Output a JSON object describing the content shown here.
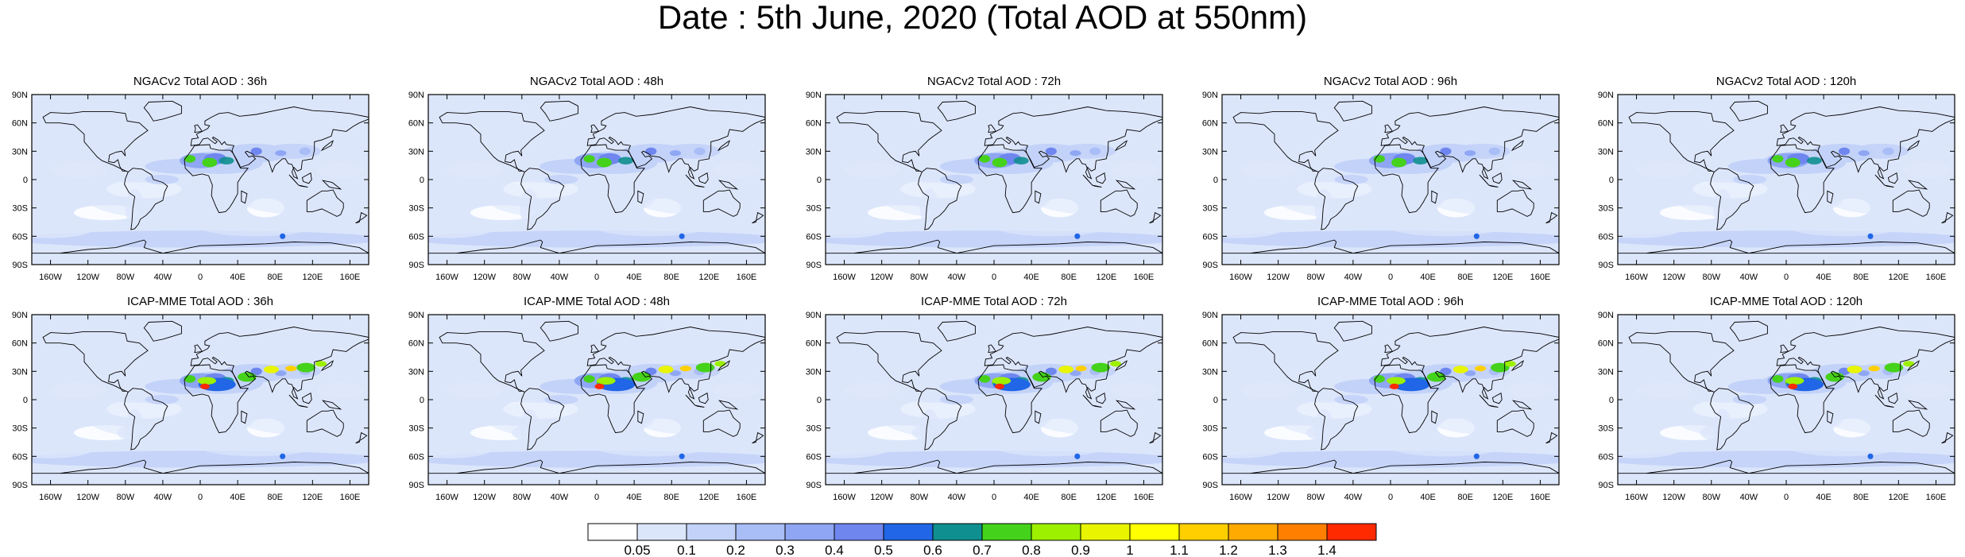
{
  "title": "Date : 5th June, 2020 (Total AOD at 550nm)",
  "rows": [
    {
      "panels": [
        {
          "title": "NGACv2 Total AOD : 36h"
        },
        {
          "title": "NGACv2 Total AOD : 48h"
        },
        {
          "title": "NGACv2 Total AOD : 72h"
        },
        {
          "title": "NGACv2 Total AOD : 96h"
        },
        {
          "title": "NGACv2 Total AOD : 120h"
        }
      ]
    },
    {
      "panels": [
        {
          "title": "ICAP-MME Total AOD : 36h"
        },
        {
          "title": "ICAP-MME Total AOD : 48h"
        },
        {
          "title": "ICAP-MME Total AOD : 72h"
        },
        {
          "title": "ICAP-MME Total AOD : 96h"
        },
        {
          "title": "ICAP-MME Total AOD : 120h"
        }
      ]
    }
  ],
  "axes": {
    "lat_labels": [
      "90N",
      "60N",
      "30N",
      "0",
      "30S",
      "60S",
      "90S"
    ],
    "lon_labels": [
      "160W",
      "120W",
      "80W",
      "40W",
      "0",
      "40E",
      "80E",
      "120E",
      "160E"
    ]
  },
  "colorbar": {
    "labels": [
      "0.05",
      "0.1",
      "0.2",
      "0.3",
      "0.4",
      "0.5",
      "0.6",
      "0.7",
      "0.8",
      "0.9",
      "1",
      "1.1",
      "1.2",
      "1.3",
      "1.4"
    ],
    "colors": [
      "#ffffff",
      "#dce6fb",
      "#c3d2f8",
      "#a9bdf6",
      "#8ea6f3",
      "#6f86ef",
      "#2066e6",
      "#0f8f8f",
      "#45d21a",
      "#9cf000",
      "#e9f500",
      "#ffff00",
      "#ffcf00",
      "#ffaa00",
      "#ff8000",
      "#ff2a00"
    ]
  }
}
